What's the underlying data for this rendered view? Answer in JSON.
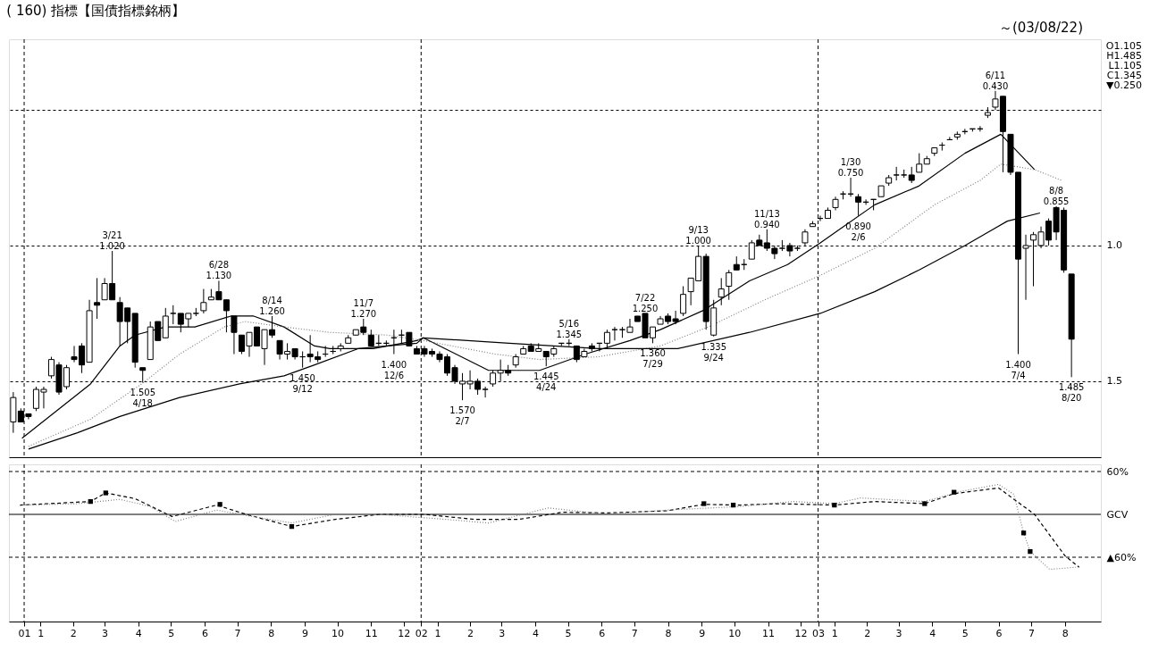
{
  "chart_data": [
    {
      "type": "candlestick",
      "title": "( 160) 指標【国債指標銘柄】",
      "subtitle": "～(03/08/22)",
      "x": [
        "2000-12-22",
        "2000-12-29",
        "2001-01-05",
        "2001-01-12",
        "2001-01-19",
        "2001-01-26",
        "2001-02-02",
        "2001-02-09",
        "2001-02-16",
        "2001-02-23",
        "2001-03-02",
        "2001-03-09",
        "2001-03-16",
        "2001-03-23",
        "2001-03-30",
        "2001-04-06",
        "2001-04-13",
        "2001-04-20",
        "2001-04-27",
        "2001-05-04",
        "2001-05-11",
        "2001-05-18",
        "2001-05-25",
        "2001-06-01",
        "2001-06-08",
        "2001-06-15",
        "2001-06-22",
        "2001-06-29",
        "2001-07-06",
        "2001-07-13",
        "2001-07-20",
        "2001-07-27",
        "2001-08-03",
        "2001-08-10",
        "2001-08-17",
        "2001-08-24",
        "2001-08-31",
        "2001-09-07",
        "2001-09-14",
        "2001-09-21",
        "2001-09-28",
        "2001-10-05",
        "2001-10-12",
        "2001-10-19",
        "2001-10-26",
        "2001-11-02",
        "2001-11-09",
        "2001-11-16",
        "2001-11-23",
        "2001-11-30",
        "2001-12-07",
        "2001-12-14",
        "2001-12-21",
        "2001-12-28",
        "2002-01-04",
        "2002-01-11",
        "2002-01-18",
        "2002-01-25",
        "2002-02-01",
        "2002-02-08",
        "2002-02-15",
        "2002-02-22",
        "2002-03-01",
        "2002-03-08",
        "2002-03-15",
        "2002-03-22",
        "2002-03-29",
        "2002-04-05",
        "2002-04-12",
        "2002-04-19",
        "2002-04-26",
        "2002-05-03",
        "2002-05-10",
        "2002-05-17",
        "2002-05-24",
        "2002-05-31",
        "2002-06-07",
        "2002-06-14",
        "2002-06-21",
        "2002-06-28",
        "2002-07-05",
        "2002-07-12",
        "2002-07-19",
        "2002-07-26",
        "2002-08-02",
        "2002-08-09",
        "2002-08-16",
        "2002-08-23",
        "2002-08-30",
        "2002-09-06",
        "2002-09-13",
        "2002-09-20",
        "2002-09-27",
        "2002-10-04",
        "2002-10-11",
        "2002-10-18",
        "2002-10-25",
        "2002-11-01",
        "2002-11-08",
        "2002-11-15",
        "2002-11-22",
        "2002-11-29",
        "2002-12-06",
        "2002-12-13",
        "2002-12-20",
        "2002-12-27",
        "2003-01-03",
        "2003-01-10",
        "2003-01-17",
        "2003-01-24",
        "2003-01-31",
        "2003-02-07",
        "2003-02-14",
        "2003-02-21",
        "2003-02-28",
        "2003-03-07",
        "2003-03-14",
        "2003-03-21",
        "2003-03-28",
        "2003-04-04",
        "2003-04-11",
        "2003-04-18",
        "2003-04-25",
        "2003-05-02",
        "2003-05-09",
        "2003-05-16",
        "2003-05-23",
        "2003-05-30",
        "2003-06-06",
        "2003-06-13",
        "2003-06-20",
        "2003-06-27",
        "2003-07-04",
        "2003-07-11",
        "2003-07-18",
        "2003-07-25",
        "2003-08-01",
        "2003-08-08",
        "2003-08-15",
        "2003-08-22"
      ],
      "ohlc": [
        [
          1.65,
          1.69,
          1.54,
          1.56
        ],
        [
          1.61,
          1.65,
          1.6,
          1.65
        ],
        [
          1.62,
          1.64,
          1.62,
          1.63
        ],
        [
          1.6,
          1.61,
          1.52,
          1.53
        ],
        [
          1.54,
          1.6,
          1.52,
          1.53
        ],
        [
          1.48,
          1.49,
          1.41,
          1.42
        ],
        [
          1.44,
          1.55,
          1.43,
          1.54
        ],
        [
          1.52,
          1.53,
          1.44,
          1.45
        ],
        [
          1.41,
          1.43,
          1.37,
          1.42
        ],
        [
          1.37,
          1.47,
          1.36,
          1.44
        ],
        [
          1.43,
          1.43,
          1.2,
          1.24
        ],
        [
          1.21,
          1.27,
          1.12,
          1.22
        ],
        [
          1.2,
          1.2,
          1.12,
          1.14
        ],
        [
          1.14,
          1.2,
          1.02,
          1.2
        ],
        [
          1.21,
          1.37,
          1.19,
          1.28
        ],
        [
          1.23,
          1.36,
          1.23,
          1.28
        ],
        [
          1.25,
          1.45,
          1.25,
          1.43
        ],
        [
          1.45,
          1.505,
          1.45,
          1.46
        ],
        [
          1.42,
          1.42,
          1.28,
          1.3
        ],
        [
          1.28,
          1.35,
          1.28,
          1.35
        ],
        [
          1.34,
          1.34,
          1.23,
          1.26
        ],
        [
          1.25,
          1.29,
          1.22,
          1.25
        ],
        [
          1.25,
          1.32,
          1.25,
          1.29
        ],
        [
          1.27,
          1.3,
          1.25,
          1.25
        ],
        [
          1.25,
          1.26,
          1.23,
          1.25
        ],
        [
          1.24,
          1.25,
          1.16,
          1.21
        ],
        [
          1.2,
          1.2,
          1.16,
          1.19
        ],
        [
          1.17,
          1.2,
          1.13,
          1.2
        ],
        [
          1.2,
          1.32,
          1.2,
          1.24
        ],
        [
          1.26,
          1.4,
          1.26,
          1.32
        ],
        [
          1.33,
          1.4,
          1.33,
          1.39
        ],
        [
          1.37,
          1.41,
          1.32,
          1.32
        ],
        [
          1.3,
          1.37,
          1.3,
          1.37
        ],
        [
          1.38,
          1.44,
          1.31,
          1.31
        ],
        [
          1.31,
          1.34,
          1.26,
          1.33
        ],
        [
          1.35,
          1.42,
          1.35,
          1.4
        ],
        [
          1.4,
          1.42,
          1.36,
          1.39
        ],
        [
          1.38,
          1.42,
          1.38,
          1.41
        ],
        [
          1.41,
          1.45,
          1.39,
          1.41
        ],
        [
          1.4,
          1.43,
          1.33,
          1.41
        ],
        [
          1.41,
          1.43,
          1.39,
          1.42
        ],
        [
          1.4,
          1.41,
          1.37,
          1.4
        ],
        [
          1.39,
          1.4,
          1.37,
          1.39
        ],
        [
          1.38,
          1.39,
          1.36,
          1.37
        ],
        [
          1.36,
          1.36,
          1.33,
          1.34
        ],
        [
          1.33,
          1.33,
          1.31,
          1.31
        ],
        [
          1.3,
          1.33,
          1.27,
          1.32
        ],
        [
          1.33,
          1.37,
          1.31,
          1.37
        ],
        [
          1.36,
          1.37,
          1.33,
          1.36
        ],
        [
          1.36,
          1.37,
          1.35,
          1.36
        ],
        [
          1.34,
          1.4,
          1.31,
          1.34
        ],
        [
          1.33,
          1.36,
          1.31,
          1.33
        ],
        [
          1.32,
          1.37,
          1.32,
          1.37
        ],
        [
          1.38,
          1.4,
          1.37,
          1.4
        ],
        [
          1.38,
          1.41,
          1.37,
          1.4
        ],
        [
          1.39,
          1.41,
          1.38,
          1.4
        ],
        [
          1.4,
          1.43,
          1.39,
          1.42
        ],
        [
          1.41,
          1.48,
          1.4,
          1.47
        ],
        [
          1.45,
          1.51,
          1.44,
          1.5
        ],
        [
          1.51,
          1.57,
          1.47,
          1.5
        ],
        [
          1.51,
          1.53,
          1.46,
          1.5
        ],
        [
          1.5,
          1.55,
          1.49,
          1.53
        ],
        [
          1.53,
          1.56,
          1.52,
          1.53
        ],
        [
          1.51,
          1.52,
          1.46,
          1.47
        ],
        [
          1.47,
          1.5,
          1.42,
          1.46
        ],
        [
          1.46,
          1.48,
          1.44,
          1.47
        ],
        [
          1.44,
          1.45,
          1.4,
          1.41
        ],
        [
          1.4,
          1.4,
          1.37,
          1.38
        ],
        [
          1.37,
          1.39,
          1.36,
          1.39
        ],
        [
          1.39,
          1.39,
          1.36,
          1.38
        ],
        [
          1.39,
          1.445,
          1.39,
          1.41
        ],
        [
          1.4,
          1.41,
          1.37,
          1.38
        ],
        [
          1.36,
          1.37,
          1.36,
          1.36
        ],
        [
          1.36,
          1.37,
          1.345,
          1.36
        ],
        [
          1.37,
          1.43,
          1.37,
          1.42
        ],
        [
          1.41,
          1.41,
          1.38,
          1.39
        ],
        [
          1.37,
          1.39,
          1.36,
          1.38
        ],
        [
          1.36,
          1.39,
          1.36,
          1.36
        ],
        [
          1.36,
          1.38,
          1.31,
          1.32
        ],
        [
          1.31,
          1.35,
          1.3,
          1.31
        ],
        [
          1.31,
          1.34,
          1.3,
          1.31
        ],
        [
          1.32,
          1.32,
          1.27,
          1.3
        ],
        [
          1.26,
          1.28,
          1.26,
          1.28
        ],
        [
          1.25,
          1.34,
          1.25,
          1.34
        ],
        [
          1.34,
          1.36,
          1.3,
          1.3
        ],
        [
          1.29,
          1.29,
          1.26,
          1.27
        ],
        [
          1.26,
          1.29,
          1.25,
          1.28
        ],
        [
          1.27,
          1.29,
          1.24,
          1.28
        ],
        [
          1.25,
          1.26,
          1.15,
          1.18
        ],
        [
          1.17,
          1.22,
          1.12,
          1.12
        ],
        [
          1.13,
          1.13,
          1.0,
          1.04
        ],
        [
          1.04,
          1.31,
          1.03,
          1.28
        ],
        [
          1.33,
          1.335,
          1.2,
          1.23
        ],
        [
          1.19,
          1.22,
          1.12,
          1.16
        ],
        [
          1.15,
          1.2,
          1.09,
          1.1
        ],
        [
          1.07,
          1.09,
          1.04,
          1.09
        ],
        [
          1.07,
          1.09,
          1.05,
          1.07
        ],
        [
          1.05,
          1.05,
          0.98,
          0.99
        ],
        [
          0.98,
          1.0,
          0.96,
          1.0
        ],
        [
          0.99,
          1.02,
          0.94,
          1.01
        ],
        [
          1.01,
          1.05,
          1.0,
          1.03
        ],
        [
          1.01,
          1.02,
          0.98,
          1.01
        ],
        [
          1.0,
          1.04,
          0.99,
          1.02
        ],
        [
          1.01,
          1.02,
          1.0,
          1.01
        ],
        [
          0.99,
          1.0,
          0.94,
          0.95
        ],
        [
          0.93,
          0.93,
          0.91,
          0.92
        ],
        [
          0.9,
          0.91,
          0.89,
          0.9
        ],
        [
          0.9,
          0.9,
          0.86,
          0.87
        ],
        [
          0.86,
          0.87,
          0.82,
          0.83
        ],
        [
          0.81,
          0.83,
          0.8,
          0.81
        ],
        [
          0.81,
          0.82,
          0.75,
          0.81
        ],
        [
          0.82,
          0.89,
          0.81,
          0.84
        ],
        [
          0.84,
          0.85,
          0.83,
          0.84
        ],
        [
          0.83,
          0.87,
          0.83,
          0.83
        ],
        [
          0.82,
          0.82,
          0.78,
          0.78
        ],
        [
          0.77,
          0.78,
          0.74,
          0.75
        ],
        [
          0.74,
          0.76,
          0.71,
          0.74
        ],
        [
          0.74,
          0.75,
          0.72,
          0.74
        ],
        [
          0.74,
          0.77,
          0.71,
          0.76
        ],
        [
          0.73,
          0.73,
          0.66,
          0.7
        ],
        [
          0.7,
          0.7,
          0.67,
          0.68
        ],
        [
          0.66,
          0.67,
          0.64,
          0.64
        ],
        [
          0.63,
          0.65,
          0.62,
          0.63
        ],
        [
          0.61,
          0.61,
          0.6,
          0.61
        ],
        [
          0.6,
          0.61,
          0.58,
          0.59
        ],
        [
          0.58,
          0.59,
          0.57,
          0.58
        ],
        [
          0.57,
          0.58,
          0.57,
          0.57
        ],
        [
          0.57,
          0.58,
          0.56,
          0.57
        ],
        [
          0.52,
          0.53,
          0.49,
          0.51
        ],
        [
          0.49,
          0.5,
          0.43,
          0.46
        ],
        [
          0.45,
          0.73,
          0.45,
          0.58
        ],
        [
          0.59,
          0.74,
          0.59,
          0.73
        ],
        [
          0.73,
          1.4,
          0.73,
          1.05
        ],
        [
          1.01,
          1.2,
          0.96,
          1.0
        ],
        [
          0.98,
          1.15,
          0.95,
          0.96
        ],
        [
          1.0,
          1.01,
          0.93,
          0.95
        ],
        [
          0.91,
          1.0,
          0.9,
          0.98
        ],
        [
          0.86,
          0.98,
          0.855,
          0.95
        ],
        [
          0.87,
          1.1,
          0.86,
          1.09
        ],
        [
          1.105,
          1.485,
          1.105,
          1.345
        ]
      ],
      "series": [
        {
          "type": "line",
          "color": "#000000",
          "line_style": "solid",
          "x": [
            "2000-12-30",
            "2001-03-03",
            "2001-03-30",
            "2001-04-13",
            "2001-05-11",
            "2001-06-07",
            "2001-07-10",
            "2001-07-31",
            "2001-08-28",
            "2001-09-25",
            "2001-10-09",
            "2001-11-18",
            "2001-12-28",
            "2002-01-03",
            "2002-03-04",
            "2002-04-20",
            "2002-06-01",
            "2002-07-12",
            "2002-08-09",
            "2002-09-17",
            "2002-10-30",
            "2002-12-04",
            "2003-01-03",
            "2003-02-22",
            "2003-04-04",
            "2003-05-16",
            "2003-06-18",
            "2003-07-19"
          ],
          "values": [
            1.71,
            1.51,
            1.37,
            1.33,
            1.3,
            1.3,
            1.26,
            1.26,
            1.3,
            1.37,
            1.38,
            1.38,
            1.35,
            1.34,
            1.46,
            1.46,
            1.4,
            1.35,
            1.31,
            1.24,
            1.13,
            1.07,
            0.99,
            0.85,
            0.78,
            0.66,
            0.59,
            0.72
          ]
        },
        {
          "type": "line",
          "color": "#808080",
          "line_style": "dotted",
          "x": [
            "2001-01-05",
            "2001-03-03",
            "2001-04-19",
            "2001-05-24",
            "2001-07-04",
            "2001-07-23",
            "2001-08-28",
            "2001-10-09",
            "2001-12-01",
            "2002-01-03",
            "2002-03-10",
            "2002-04-20",
            "2002-06-13",
            "2002-08-09",
            "2002-09-22",
            "2002-11-13",
            "2003-01-03",
            "2003-02-22",
            "2003-04-18",
            "2003-05-30",
            "2003-06-18",
            "2003-07-19",
            "2003-08-13"
          ],
          "values": [
            1.74,
            1.64,
            1.51,
            1.4,
            1.3,
            1.28,
            1.3,
            1.32,
            1.33,
            1.35,
            1.4,
            1.42,
            1.41,
            1.37,
            1.3,
            1.2,
            1.11,
            1.01,
            0.85,
            0.76,
            0.7,
            0.72,
            0.76
          ]
        },
        {
          "type": "line",
          "color": "#000000",
          "line_style": "solid",
          "x": [
            "2001-01-05",
            "2001-02-19",
            "2001-03-30",
            "2001-05-24",
            "2001-07-18",
            "2001-08-28",
            "2001-09-25",
            "2001-11-04",
            "2001-12-28",
            "2002-01-03",
            "2002-03-23",
            "2002-06-13",
            "2002-08-25",
            "2002-10-30",
            "2003-01-03",
            "2003-02-22",
            "2003-04-04",
            "2003-05-16",
            "2003-06-24",
            "2003-07-24"
          ],
          "values": [
            1.75,
            1.69,
            1.63,
            1.56,
            1.51,
            1.48,
            1.44,
            1.38,
            1.36,
            1.34,
            1.36,
            1.38,
            1.38,
            1.32,
            1.25,
            1.17,
            1.09,
            1.0,
            0.91,
            0.88
          ]
        }
      ],
      "xlim": [
        "2000-12-18",
        "2003-09-18"
      ],
      "ylim": [
        1.78,
        0.24
      ],
      "yticks": [
        {
          "value": 0.5,
          "label": null
        },
        {
          "value": 1.0,
          "label": "1.0"
        },
        {
          "value": 1.5,
          "label": "1.5"
        }
      ],
      "tick_labels": "y",
      "grid": "y",
      "ref_lines": [
        {
          "axis": "x",
          "value": "2001-01-01",
          "line_style": "dashed"
        },
        {
          "axis": "x",
          "value": "2002-01-01",
          "line_style": "dashed"
        },
        {
          "axis": "x",
          "value": "2003-01-01",
          "line_style": "dashed"
        }
      ],
      "annotations": [
        {
          "text": "3/21\n1.020",
          "x": "2001-03-23",
          "y": 1.02
        },
        {
          "text": "1.505\n4/18",
          "x": "2001-04-20",
          "y": 1.505
        },
        {
          "text": "6/28\n1.130",
          "x": "2001-06-29",
          "y": 1.13
        },
        {
          "text": "8/14\n1.260",
          "x": "2001-08-17",
          "y": 1.26
        },
        {
          "text": "1.450\n9/12",
          "x": "2001-09-14",
          "y": 1.45
        },
        {
          "text": "11/7\n1.270",
          "x": "2001-11-09",
          "y": 1.27
        },
        {
          "text": "1.400\n12/6",
          "x": "2001-12-07",
          "y": 1.4
        },
        {
          "text": "1.570\n2/7",
          "x": "2002-02-08",
          "y": 1.57
        },
        {
          "text": "1.445\n4/24",
          "x": "2002-04-26",
          "y": 1.445
        },
        {
          "text": "5/16\n1.345",
          "x": "2002-05-17",
          "y": 1.345
        },
        {
          "text": "7/22\n1.250",
          "x": "2002-07-26",
          "y": 1.25
        },
        {
          "text": "1.360\n7/29",
          "x": "2002-08-02",
          "y": 1.36
        },
        {
          "text": "9/13\n1.000",
          "x": "2002-09-13",
          "y": 1.0
        },
        {
          "text": "1.335\n9/24",
          "x": "2002-09-27",
          "y": 1.335
        },
        {
          "text": "11/13\n0.940",
          "x": "2002-11-15",
          "y": 0.94
        },
        {
          "text": "1/30\n0.750",
          "x": "2003-01-31",
          "y": 0.75
        },
        {
          "text": "0.890\n2/6",
          "x": "2003-02-07",
          "y": 0.89
        },
        {
          "text": "6/11\n0.430",
          "x": "2003-06-13",
          "y": 0.43
        },
        {
          "text": "1.400\n7/4",
          "x": "2003-07-04",
          "y": 1.4
        },
        {
          "text": "8/8\n0.855",
          "x": "2003-08-08",
          "y": 0.855
        },
        {
          "text": "1.485\n8/20",
          "x": "2003-08-22",
          "y": 1.485
        },
        "O1.105",
        "H1.485",
        "L1.105",
        "C1.345",
        "▼0.250"
      ]
    },
    {
      "type": "line",
      "series": [
        {
          "color": "#000000",
          "line_style": "dashed",
          "x": [
            "2000-12-28",
            "2001-03-03",
            "2001-03-17",
            "2001-04-13",
            "2001-05-17",
            "2001-06-27",
            "2001-07-24",
            "2001-09-04",
            "2001-10-14",
            "2001-11-24",
            "2002-01-04",
            "2002-02-19",
            "2002-04-01",
            "2002-05-11",
            "2002-06-21",
            "2002-08-15",
            "2002-09-18",
            "2002-10-21",
            "2002-11-25",
            "2003-01-16",
            "2003-02-22",
            "2003-04-09",
            "2003-05-06",
            "2003-06-16",
            "2003-07-19",
            "2003-08-16",
            "2003-08-29"
          ],
          "values": [
            13,
            18,
            30,
            22,
            -3,
            13,
            0,
            -17,
            -7,
            0,
            0,
            -7,
            -7,
            3,
            2,
            5,
            14,
            13,
            15,
            13,
            18,
            15,
            29,
            37,
            0,
            -58,
            -74
          ]
        },
        {
          "color": "#808080",
          "line_style": "dotted",
          "x": [
            "2000-12-28",
            "2001-02-19",
            "2001-03-30",
            "2001-04-27",
            "2001-05-20",
            "2001-06-27",
            "2001-07-30",
            "2001-09-04",
            "2001-10-14",
            "2001-11-24",
            "2002-01-24",
            "2002-03-04",
            "2002-04-28",
            "2002-06-21",
            "2002-08-15",
            "2002-10-21",
            "2002-12-09",
            "2003-01-16",
            "2003-02-09",
            "2003-04-09",
            "2003-05-12",
            "2003-06-16",
            "2003-06-30",
            "2003-07-09",
            "2003-07-15",
            "2003-08-02",
            "2003-08-26"
          ],
          "values": [
            13,
            15,
            21,
            11,
            -10,
            6,
            -3,
            -12,
            0,
            0,
            -7,
            -12,
            9,
            0,
            6,
            11,
            18,
            15,
            23,
            18,
            32,
            42,
            28,
            -26,
            -52,
            -77,
            -74
          ]
        },
        {
          "type": "scatter",
          "marker": "square",
          "color": "#000000",
          "x": [
            "2001-03-03",
            "2001-03-17",
            "2001-06-30",
            "2001-09-04",
            "2002-09-18",
            "2002-10-15",
            "2003-01-16",
            "2003-04-09",
            "2003-05-06",
            "2003-07-09",
            "2003-07-15"
          ],
          "values": [
            18,
            30,
            14,
            -17,
            15,
            13,
            13,
            15,
            31,
            -26,
            -52
          ]
        }
      ],
      "xlim": [
        "2000-12-18",
        "2003-09-18"
      ],
      "ylim": [
        -150,
        70
      ],
      "yticks": [
        {
          "value": 60,
          "label": "60%"
        },
        {
          "value": 0,
          "label": "GCV"
        },
        {
          "value": -60,
          "label": "▲60%"
        }
      ],
      "xticks": [
        {
          "value": "2001-01-01",
          "label": "01"
        },
        {
          "value": "2001-01-16",
          "label": "1"
        },
        {
          "value": "2001-02-15",
          "label": "2"
        },
        {
          "value": "2001-03-16",
          "label": "3"
        },
        {
          "value": "2001-04-16",
          "label": "4"
        },
        {
          "value": "2001-05-16",
          "label": "5"
        },
        {
          "value": "2001-06-16",
          "label": "6"
        },
        {
          "value": "2001-07-16",
          "label": "7"
        },
        {
          "value": "2001-08-16",
          "label": "8"
        },
        {
          "value": "2001-09-16",
          "label": "9"
        },
        {
          "value": "2001-10-16",
          "label": "10"
        },
        {
          "value": "2001-11-16",
          "label": "11"
        },
        {
          "value": "2001-12-16",
          "label": "12"
        },
        {
          "value": "2002-01-01",
          "label": "02"
        },
        {
          "value": "2002-01-16",
          "label": "1"
        },
        {
          "value": "2002-02-15",
          "label": "2"
        },
        {
          "value": "2002-03-16",
          "label": "3"
        },
        {
          "value": "2002-04-16",
          "label": "4"
        },
        {
          "value": "2002-05-16",
          "label": "5"
        },
        {
          "value": "2002-06-16",
          "label": "6"
        },
        {
          "value": "2002-07-16",
          "label": "7"
        },
        {
          "value": "2002-08-16",
          "label": "8"
        },
        {
          "value": "2002-09-16",
          "label": "9"
        },
        {
          "value": "2002-10-16",
          "label": "10"
        },
        {
          "value": "2002-11-16",
          "label": "11"
        },
        {
          "value": "2002-12-16",
          "label": "12"
        },
        {
          "value": "2003-01-01",
          "label": "03"
        },
        {
          "value": "2003-01-16",
          "label": "1"
        },
        {
          "value": "2003-02-15",
          "label": "2"
        },
        {
          "value": "2003-03-16",
          "label": "3"
        },
        {
          "value": "2003-04-16",
          "label": "4"
        },
        {
          "value": "2003-05-16",
          "label": "5"
        },
        {
          "value": "2003-06-16",
          "label": "6"
        },
        {
          "value": "2003-07-16",
          "label": "7"
        },
        {
          "value": "2003-08-16",
          "label": "8"
        }
      ],
      "ref_lines": [
        {
          "axis": "y",
          "value": 60,
          "line_style": "dashed"
        },
        {
          "axis": "y",
          "value": 0,
          "line_style": "solid"
        },
        {
          "axis": "y",
          "value": -60,
          "line_style": "dashed"
        },
        {
          "axis": "x",
          "value": "2001-01-01",
          "line_style": "dashed"
        },
        {
          "axis": "x",
          "value": "2002-01-01",
          "line_style": "dashed"
        },
        {
          "axis": "x",
          "value": "2003-01-01",
          "line_style": "dashed"
        }
      ]
    }
  ]
}
